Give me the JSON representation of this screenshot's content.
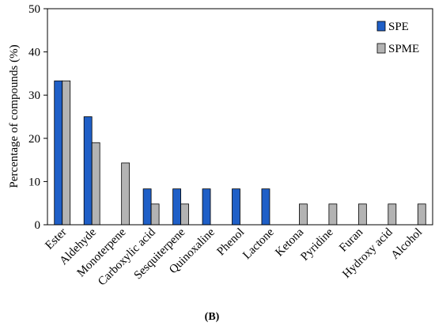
{
  "chart_data": {
    "type": "bar",
    "categories": [
      "Ester",
      "Aldehyde",
      "Monoterpene",
      "Carboxylic acid",
      "Sesquiterpene",
      "Quinoxaline",
      "Phenol",
      "Lactone",
      "Ketona",
      "Pyridine",
      "Furan",
      "Hydroxy acid",
      "Alcohol"
    ],
    "series": [
      {
        "name": "SPE",
        "color": "#1f5fc7",
        "values": [
          33.3,
          25.0,
          0,
          8.3,
          8.3,
          8.3,
          8.3,
          8.3,
          0,
          0,
          0,
          0,
          0
        ]
      },
      {
        "name": "SPME",
        "color": "#b3b3b3",
        "values": [
          33.3,
          19.0,
          14.3,
          4.8,
          4.8,
          0,
          0,
          0,
          4.8,
          4.8,
          4.8,
          4.8,
          4.8
        ]
      }
    ],
    "ylabel": "Percentage of compounds (%)",
    "ylim": [
      0,
      50
    ],
    "yticks": [
      0,
      10,
      20,
      30,
      40,
      50
    ],
    "legend_position": "top-right",
    "grid": false
  },
  "caption": "(B)"
}
